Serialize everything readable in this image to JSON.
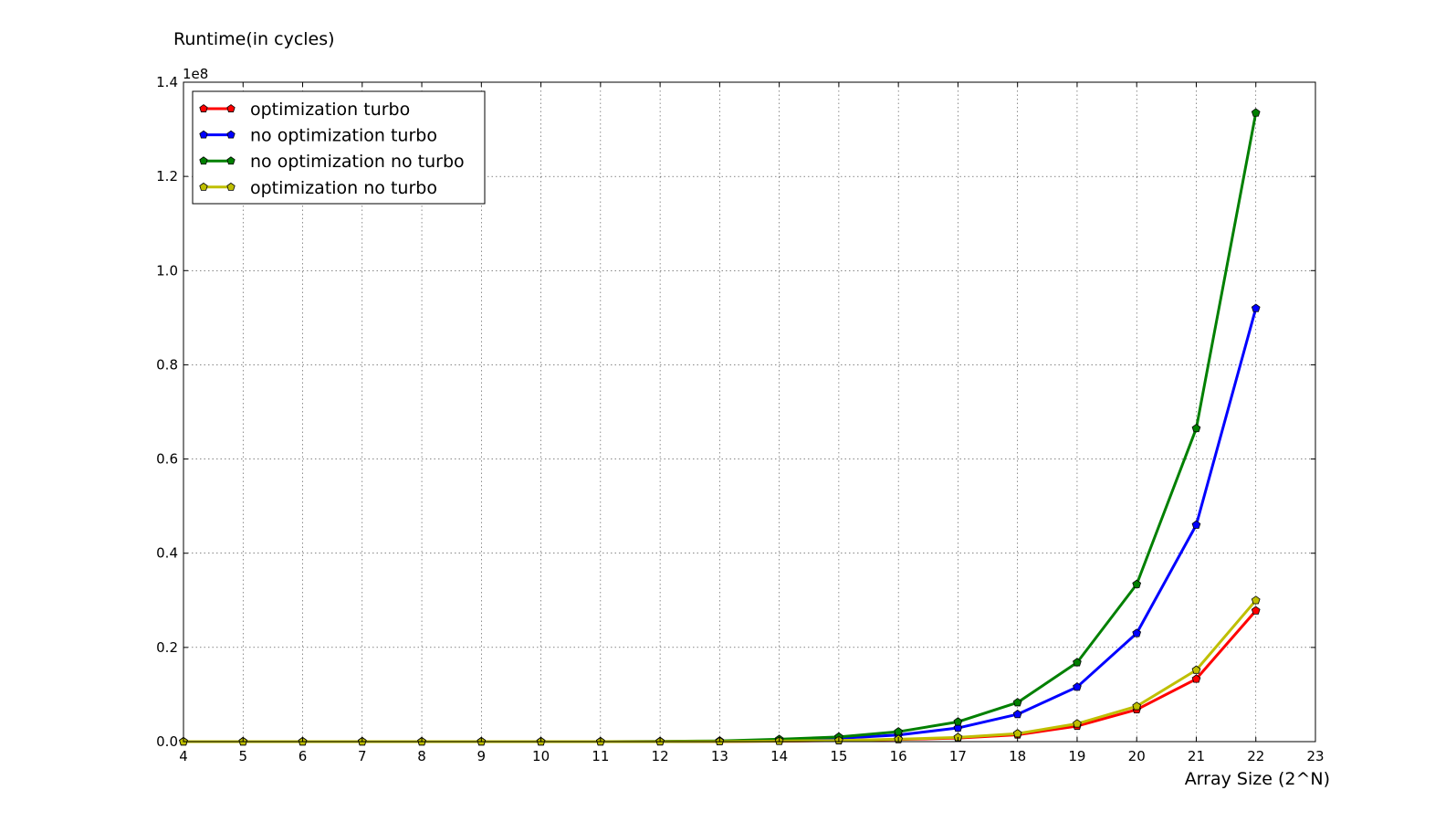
{
  "chart_data": {
    "type": "line",
    "title": "",
    "ylabel": "Runtime(in cycles)",
    "xlabel": "Array Size (2^N)",
    "y_offset_label": "1e8",
    "xlim": [
      4,
      23
    ],
    "ylim": [
      0,
      1.4
    ],
    "y_scale_multiplier": 100000000,
    "x_ticks": [
      4,
      5,
      6,
      7,
      8,
      9,
      10,
      11,
      12,
      13,
      14,
      15,
      16,
      17,
      18,
      19,
      20,
      21,
      22,
      23
    ],
    "y_ticks": [
      "0.0",
      "0.2",
      "0.4",
      "0.6",
      "0.8",
      "1.0",
      "1.2",
      "1.4"
    ],
    "grid": true,
    "legend_position": "upper-left",
    "x": [
      4,
      5,
      6,
      7,
      8,
      9,
      10,
      11,
      12,
      13,
      14,
      15,
      16,
      17,
      18,
      19,
      20,
      21,
      22
    ],
    "series": [
      {
        "name": "optimization turbo",
        "color": "#ff0000",
        "marker": "pentagon",
        "values": [
          0.0,
          0.0,
          0.0,
          0.0,
          0.0,
          0.0,
          0.0,
          0.0,
          0.0001,
          0.0003,
          0.001,
          0.0022,
          0.0047,
          0.0075,
          0.0145,
          0.033,
          0.068,
          0.133,
          0.278
        ]
      },
      {
        "name": "no optimization turbo",
        "color": "#0000ff",
        "marker": "pentagon",
        "values": [
          0.0,
          0.0,
          0.0,
          0.0,
          0.0,
          0.0,
          0.0,
          0.0,
          0.0002,
          0.001,
          0.003,
          0.007,
          0.014,
          0.029,
          0.058,
          0.116,
          0.23,
          0.46,
          0.92
        ]
      },
      {
        "name": "no optimization no turbo",
        "color": "#008000",
        "marker": "pentagon",
        "values": [
          0.0,
          0.0,
          0.0,
          0.0,
          0.0,
          0.0,
          0.0,
          0.0,
          0.0005,
          0.0015,
          0.005,
          0.01,
          0.021,
          0.042,
          0.083,
          0.168,
          0.334,
          0.665,
          1.335
        ]
      },
      {
        "name": "optimization no turbo",
        "color": "#bfbf00",
        "marker": "pentagon",
        "values": [
          0.0,
          0.0,
          0.0,
          0.0,
          0.0,
          0.0,
          0.0,
          0.0,
          0.0001,
          0.0003,
          0.0012,
          0.0025,
          0.005,
          0.009,
          0.017,
          0.038,
          0.075,
          0.152,
          0.3
        ]
      }
    ]
  }
}
